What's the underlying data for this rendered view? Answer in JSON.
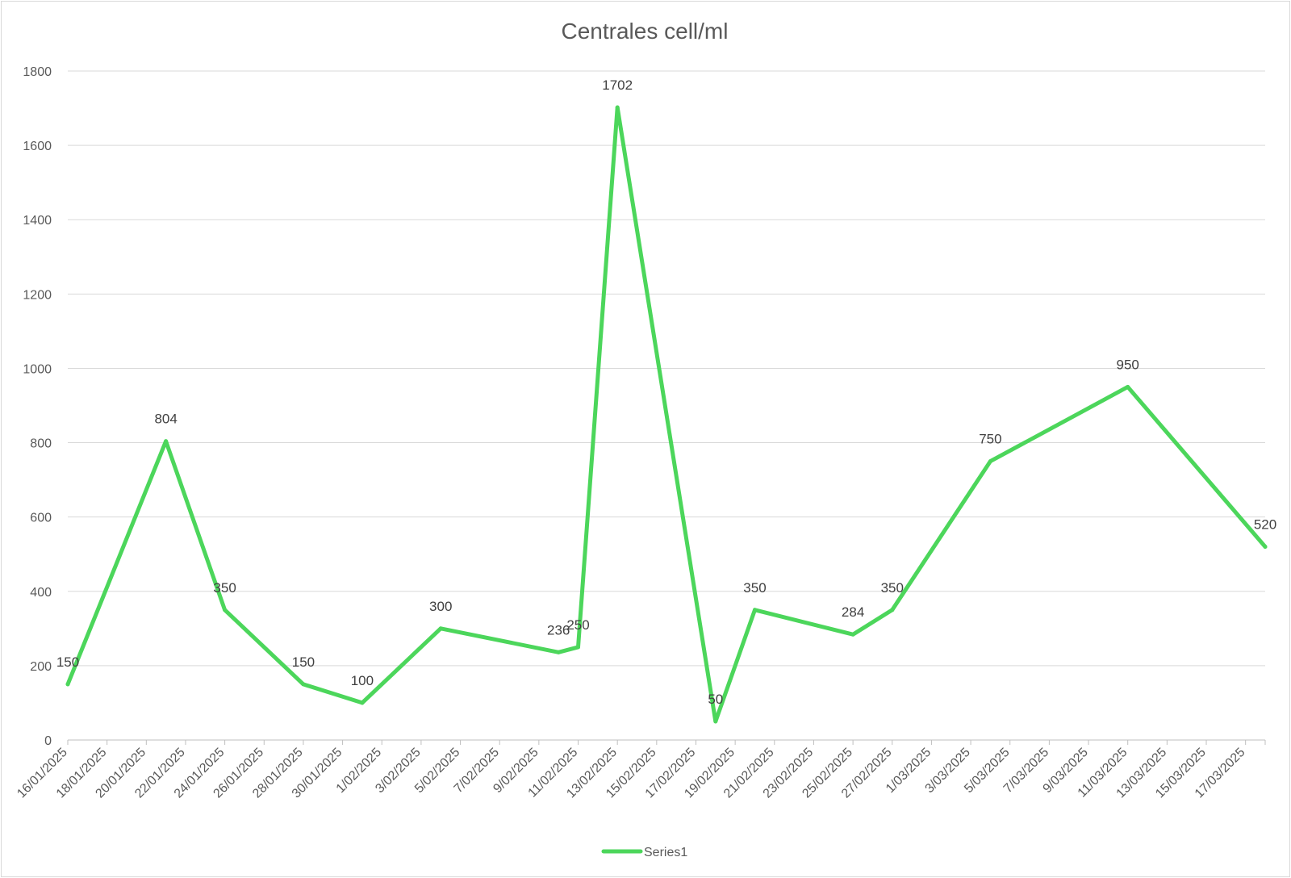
{
  "chart_data": {
    "type": "line",
    "title": "Centrales cell/ml",
    "xlabel": "",
    "ylabel": "",
    "x_axis": {
      "type": "date",
      "min": "16/01/2025",
      "max": "18/03/2025",
      "tick_labels": [
        "16/01/2025",
        "18/01/2025",
        "20/01/2025",
        "22/01/2025",
        "24/01/2025",
        "26/01/2025",
        "28/01/2025",
        "30/01/2025",
        "1/02/2025",
        "3/02/2025",
        "5/02/2025",
        "7/02/2025",
        "9/02/2025",
        "11/02/2025",
        "13/02/2025",
        "15/02/2025",
        "17/02/2025",
        "19/02/2025",
        "21/02/2025",
        "23/02/2025",
        "25/02/2025",
        "27/02/2025",
        "1/03/2025",
        "3/03/2025",
        "5/03/2025",
        "7/03/2025",
        "9/03/2025",
        "11/03/2025",
        "13/03/2025",
        "15/03/2025",
        "17/03/2025"
      ]
    },
    "y_axis": {
      "min": 0,
      "max": 1800,
      "tick_labels": [
        "0",
        "200",
        "400",
        "600",
        "800",
        "1000",
        "1200",
        "1400",
        "1600",
        "1800"
      ]
    },
    "ylim": [
      0,
      1800
    ],
    "grid": true,
    "legend": "bottom",
    "series": [
      {
        "name": "Series1",
        "color": "#4cd65b",
        "points": [
          {
            "x": "16/01/2025",
            "y": 150
          },
          {
            "x": "21/01/2025",
            "y": 804
          },
          {
            "x": "24/01/2025",
            "y": 350
          },
          {
            "x": "28/01/2025",
            "y": 150
          },
          {
            "x": "31/01/2025",
            "y": 100
          },
          {
            "x": "4/02/2025",
            "y": 300
          },
          {
            "x": "10/02/2025",
            "y": 236
          },
          {
            "x": "11/02/2025",
            "y": 250
          },
          {
            "x": "13/02/2025",
            "y": 1702
          },
          {
            "x": "18/02/2025",
            "y": 50
          },
          {
            "x": "20/02/2025",
            "y": 350
          },
          {
            "x": "25/02/2025",
            "y": 284
          },
          {
            "x": "27/02/2025",
            "y": 350
          },
          {
            "x": "4/03/2025",
            "y": 750
          },
          {
            "x": "11/03/2025",
            "y": 950
          },
          {
            "x": "18/03/2025",
            "y": 520
          }
        ],
        "labels": [
          "150",
          "804",
          "350",
          "150",
          "100",
          "300",
          "236",
          "250",
          "1702",
          "50",
          "350",
          "284",
          "350",
          "750",
          "950",
          "520"
        ]
      }
    ]
  }
}
